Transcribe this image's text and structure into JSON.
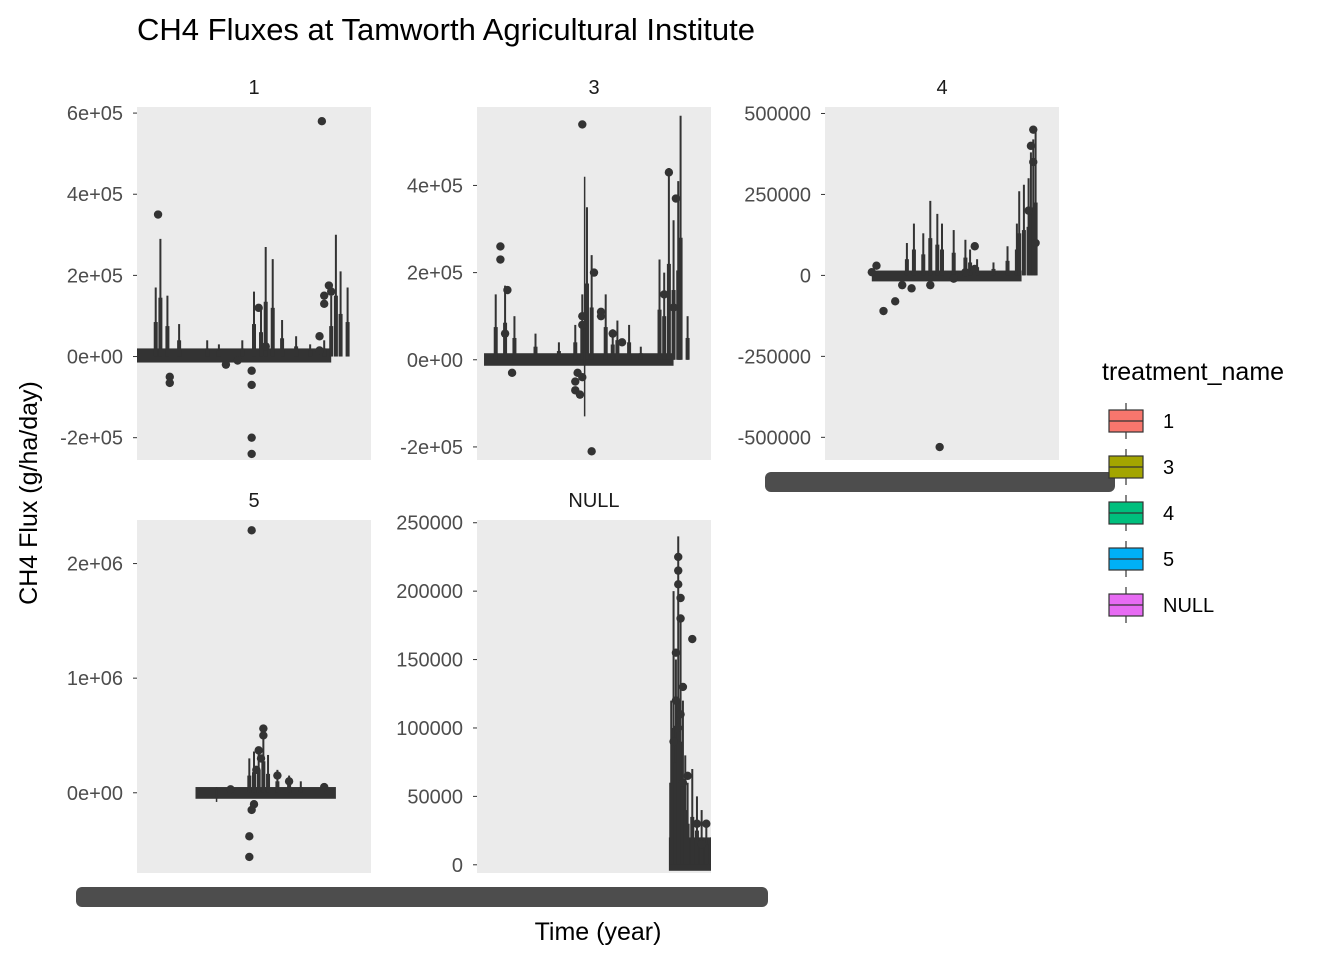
{
  "chart_data": {
    "type": "boxplot",
    "title": "CH4 Fluxes at Tamworth Agricultural Institute",
    "xlabel": "Time (year)",
    "ylabel": "CH4 Flux (g/ha/day)",
    "facet_by": "treatment_name",
    "legend": {
      "title": "treatment_name",
      "position": "right",
      "entries": [
        {
          "label": "1",
          "color": "#F8766D"
        },
        {
          "label": "3",
          "color": "#A3A500"
        },
        {
          "label": "4",
          "color": "#00BF7D"
        },
        {
          "label": "5",
          "color": "#00B0F6"
        },
        {
          "label": "NULL",
          "color": "#E76BF3"
        }
      ]
    },
    "box_color": "#333333",
    "panel_background": "#EBEBEB",
    "x_tick_labels_note": "overplotted dates rendered as an illegible dark band",
    "panels": [
      {
        "strip": "1",
        "ylim": [
          -255000,
          615000
        ],
        "y_ticks": [
          600000,
          400000,
          200000,
          0,
          -200000
        ],
        "y_tick_labels": [
          "6e+05",
          "4e+05",
          "2e+05",
          "0e+00",
          "-2e+05"
        ],
        "spikes": [
          [
            0.0,
            15000
          ],
          [
            0.08,
            170000
          ],
          [
            0.1,
            290000
          ],
          [
            0.13,
            150000
          ],
          [
            0.18,
            80000
          ],
          [
            0.3,
            40000
          ],
          [
            0.35,
            30000
          ],
          [
            0.45,
            40000
          ],
          [
            0.5,
            160000
          ],
          [
            0.53,
            120000
          ],
          [
            0.55,
            270000
          ],
          [
            0.58,
            240000
          ],
          [
            0.62,
            90000
          ],
          [
            0.68,
            50000
          ],
          [
            0.74,
            30000
          ],
          [
            0.8,
            40000
          ],
          [
            0.83,
            150000
          ],
          [
            0.85,
            300000
          ],
          [
            0.87,
            210000
          ],
          [
            0.9,
            170000
          ]
        ],
        "outliers": [
          [
            0.09,
            350000
          ],
          [
            0.14,
            -50000
          ],
          [
            0.14,
            -65000
          ],
          [
            0.38,
            -20000
          ],
          [
            0.43,
            -10000
          ],
          [
            0.49,
            -35000
          ],
          [
            0.49,
            -200000
          ],
          [
            0.49,
            -240000
          ],
          [
            0.49,
            -70000
          ],
          [
            0.52,
            120000
          ],
          [
            0.55,
            25000
          ],
          [
            0.78,
            15000
          ],
          [
            0.8,
            130000
          ],
          [
            0.8,
            150000
          ],
          [
            0.82,
            175000
          ],
          [
            0.83,
            160000
          ],
          [
            0.78,
            50000
          ],
          [
            0.79,
            580000
          ]
        ],
        "baseline": [
          0,
          20000
        ],
        "band_range": [
          0.0,
          0.83
        ]
      },
      {
        "strip": "3",
        "ylim": [
          -230000,
          580000
        ],
        "y_ticks": [
          400000,
          200000,
          0,
          -200000
        ],
        "y_tick_labels": [
          "4e+05",
          "2e+05",
          "0e+00",
          "-2e+05"
        ],
        "spikes": [
          [
            0.08,
            150000
          ],
          [
            0.12,
            170000
          ],
          [
            0.16,
            100000
          ],
          [
            0.25,
            60000
          ],
          [
            0.35,
            40000
          ],
          [
            0.42,
            80000
          ],
          [
            0.45,
            150000
          ],
          [
            0.47,
            350000
          ],
          [
            0.49,
            240000
          ],
          [
            0.55,
            150000
          ],
          [
            0.58,
            70000
          ],
          [
            0.6,
            90000
          ],
          [
            0.65,
            80000
          ],
          [
            0.7,
            30000
          ],
          [
            0.78,
            230000
          ],
          [
            0.8,
            200000
          ],
          [
            0.82,
            440000
          ],
          [
            0.84,
            320000
          ],
          [
            0.86,
            410000
          ],
          [
            0.87,
            560000
          ],
          [
            0.9,
            100000
          ]
        ],
        "outliers": [
          [
            0.1,
            260000
          ],
          [
            0.1,
            230000
          ],
          [
            0.13,
            160000
          ],
          [
            0.12,
            60000
          ],
          [
            0.15,
            -30000
          ],
          [
            0.43,
            -30000
          ],
          [
            0.42,
            -50000
          ],
          [
            0.42,
            -70000
          ],
          [
            0.44,
            -80000
          ],
          [
            0.45,
            -40000
          ],
          [
            0.45,
            80000
          ],
          [
            0.45,
            100000
          ],
          [
            0.45,
            540000
          ],
          [
            0.5,
            200000
          ],
          [
            0.53,
            110000
          ],
          [
            0.53,
            100000
          ],
          [
            0.49,
            -210000
          ],
          [
            0.82,
            430000
          ],
          [
            0.85,
            370000
          ],
          [
            0.8,
            150000
          ],
          [
            0.84,
            120000
          ],
          [
            0.58,
            60000
          ],
          [
            0.62,
            40000
          ]
        ],
        "baseline": [
          0,
          15000
        ],
        "band_range": [
          0.03,
          0.84
        ],
        "whisker": {
          "x": 0.46,
          "low": -130000,
          "high": 420000
        }
      },
      {
        "strip": "4",
        "ylim": [
          -570000,
          520000
        ],
        "y_ticks": [
          500000,
          250000,
          0,
          -250000,
          -500000
        ],
        "y_tick_labels": [
          "500000",
          "250000",
          "0",
          "-250000",
          "-500000"
        ],
        "spikes": [
          [
            0.35,
            100000
          ],
          [
            0.38,
            160000
          ],
          [
            0.42,
            130000
          ],
          [
            0.45,
            230000
          ],
          [
            0.48,
            190000
          ],
          [
            0.5,
            160000
          ],
          [
            0.55,
            140000
          ],
          [
            0.6,
            110000
          ],
          [
            0.62,
            80000
          ],
          [
            0.65,
            50000
          ],
          [
            0.72,
            40000
          ],
          [
            0.78,
            90000
          ],
          [
            0.82,
            160000
          ],
          [
            0.83,
            260000
          ],
          [
            0.85,
            280000
          ],
          [
            0.87,
            300000
          ],
          [
            0.88,
            380000
          ],
          [
            0.89,
            420000
          ],
          [
            0.9,
            450000
          ]
        ],
        "outliers": [
          [
            0.25,
            -110000
          ],
          [
            0.3,
            -80000
          ],
          [
            0.33,
            -30000
          ],
          [
            0.37,
            -40000
          ],
          [
            0.45,
            -30000
          ],
          [
            0.55,
            -10000
          ],
          [
            0.6,
            10000
          ],
          [
            0.64,
            90000
          ],
          [
            0.64,
            20000
          ],
          [
            0.87,
            200000
          ],
          [
            0.88,
            400000
          ],
          [
            0.89,
            350000
          ],
          [
            0.89,
            450000
          ],
          [
            0.9,
            100000
          ],
          [
            0.49,
            -530000
          ],
          [
            0.2,
            10000
          ],
          [
            0.22,
            30000
          ]
        ],
        "baseline": [
          0,
          15000
        ],
        "band_range": [
          0.2,
          0.84
        ]
      },
      {
        "strip": "5",
        "ylim": [
          -700000,
          2380000
        ],
        "y_ticks": [
          2000000,
          1000000,
          0
        ],
        "y_tick_labels": [
          "2e+06",
          "1e+06",
          "0e+00"
        ],
        "spikes": [
          [
            0.48,
            300000
          ],
          [
            0.5,
            360000
          ],
          [
            0.52,
            400000
          ],
          [
            0.54,
            550000
          ],
          [
            0.56,
            330000
          ],
          [
            0.6,
            200000
          ],
          [
            0.65,
            150000
          ],
          [
            0.7,
            100000
          ]
        ],
        "outliers": [
          [
            0.49,
            2290000
          ],
          [
            0.54,
            560000
          ],
          [
            0.54,
            500000
          ],
          [
            0.52,
            370000
          ],
          [
            0.53,
            300000
          ],
          [
            0.51,
            200000
          ],
          [
            0.5,
            -100000
          ],
          [
            0.49,
            -150000
          ],
          [
            0.48,
            -380000
          ],
          [
            0.48,
            -560000
          ],
          [
            0.6,
            150000
          ],
          [
            0.65,
            100000
          ],
          [
            0.4,
            30000
          ],
          [
            0.8,
            50000
          ]
        ],
        "baseline": [
          0,
          50000
        ],
        "band_range": [
          0.25,
          0.85
        ],
        "whisker": {
          "x": 0.34,
          "low": -80000,
          "high": 50000
        }
      },
      {
        "strip": "NULL",
        "ylim": [
          -6000,
          252000
        ],
        "y_ticks": [
          250000,
          200000,
          150000,
          100000,
          50000,
          0
        ],
        "y_tick_labels": [
          "250000",
          "200000",
          "150000",
          "100000",
          "50000",
          "0"
        ],
        "spikes": [
          [
            0.83,
            120000
          ],
          [
            0.84,
            200000
          ],
          [
            0.85,
            150000
          ],
          [
            0.86,
            240000
          ],
          [
            0.87,
            180000
          ],
          [
            0.88,
            120000
          ],
          [
            0.89,
            80000
          ],
          [
            0.9,
            60000
          ],
          [
            0.92,
            70000
          ],
          [
            0.94,
            50000
          ],
          [
            0.96,
            40000
          ],
          [
            0.98,
            30000
          ],
          [
            1.0,
            20000
          ]
        ],
        "outliers": [
          [
            0.85,
            155000
          ],
          [
            0.86,
            225000
          ],
          [
            0.86,
            215000
          ],
          [
            0.86,
            205000
          ],
          [
            0.87,
            195000
          ],
          [
            0.87,
            180000
          ],
          [
            0.85,
            120000
          ],
          [
            0.86,
            100000
          ],
          [
            0.84,
            90000
          ],
          [
            0.88,
            60000
          ],
          [
            0.9,
            65000
          ],
          [
            0.92,
            165000
          ],
          [
            0.88,
            130000
          ],
          [
            0.87,
            110000
          ],
          [
            0.94,
            30000
          ],
          [
            0.98,
            30000
          ],
          [
            0.96,
            15000
          ]
        ],
        "baseline": [
          0,
          20000
        ],
        "band_range": [
          0.82,
          1.0
        ]
      }
    ]
  }
}
